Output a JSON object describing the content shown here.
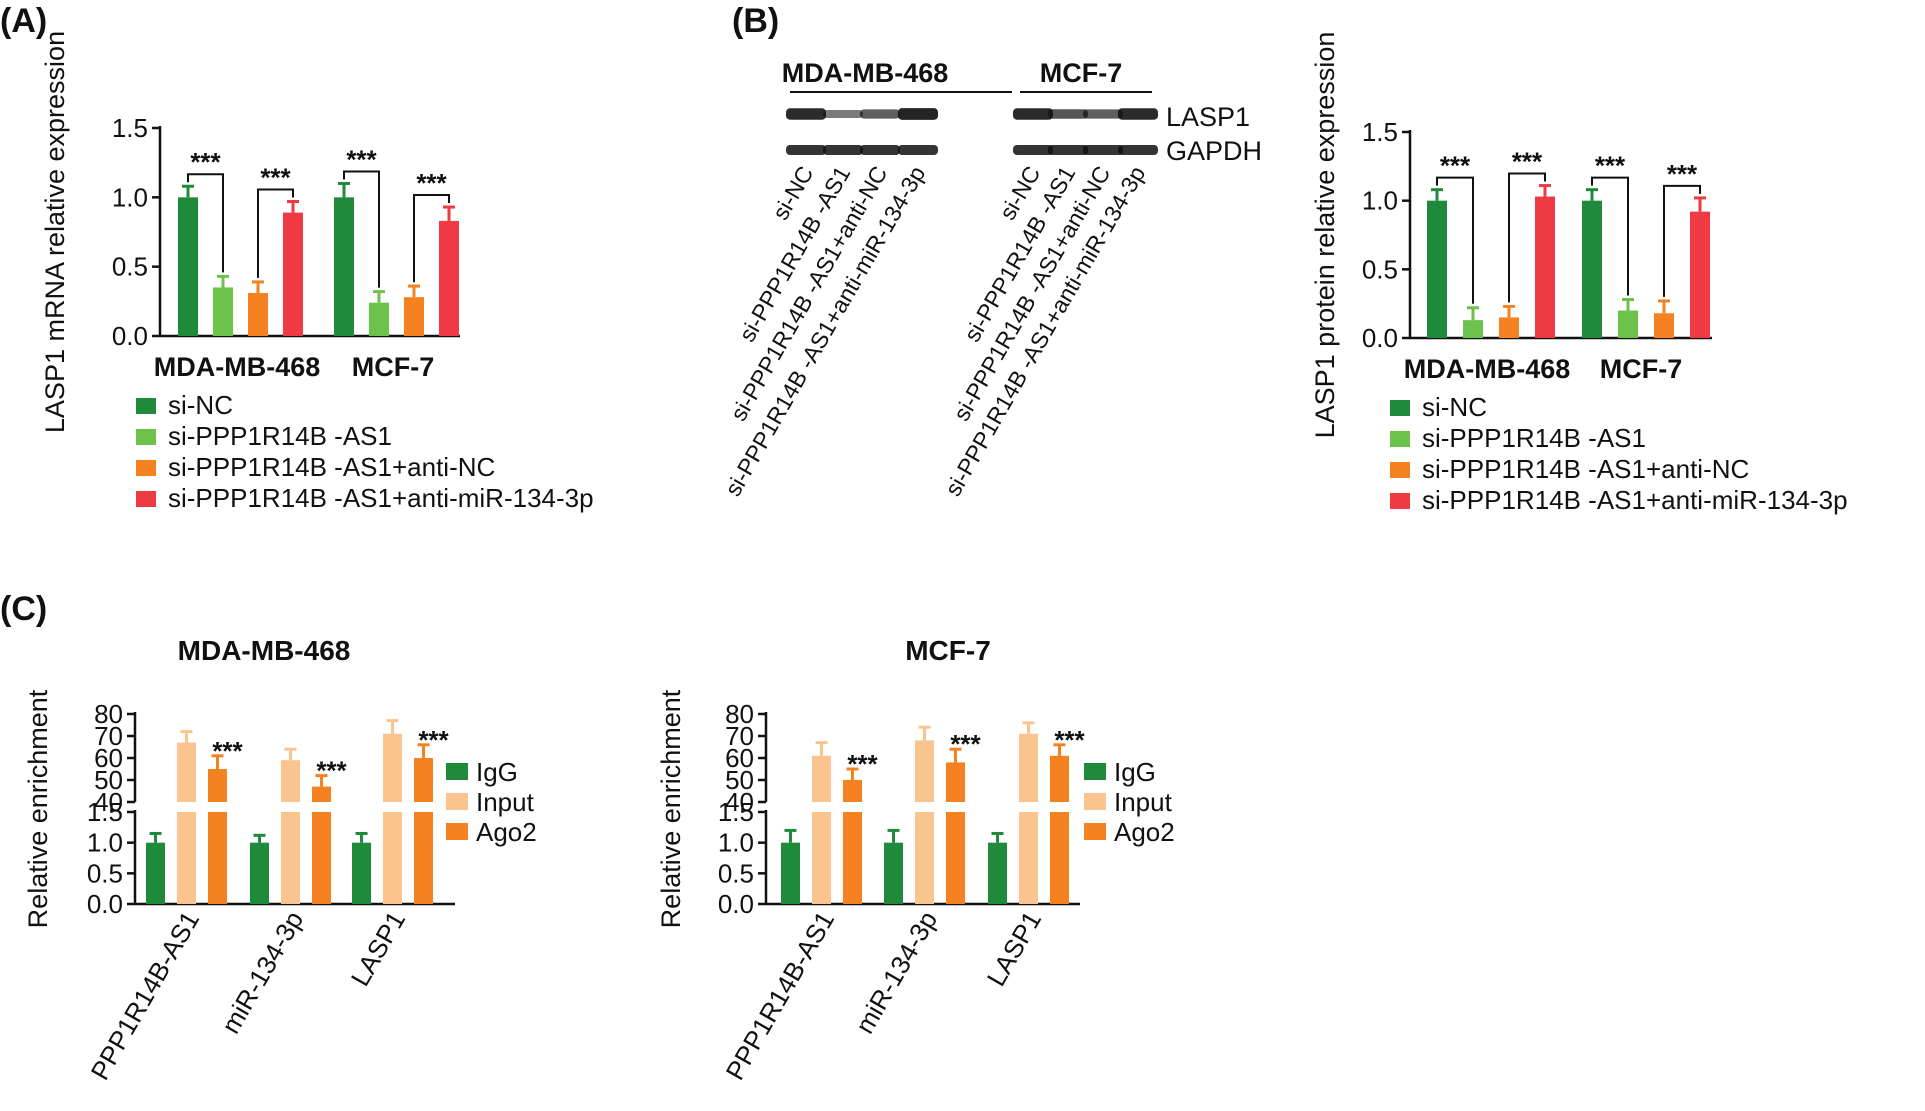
{
  "panels": {
    "a": "(A)",
    "b": "(B)",
    "c": "(C)"
  },
  "colors": {
    "si_nc": "#1f8a3c",
    "si_as1": "#6cc24a",
    "anti_nc": "#f58220",
    "anti_mir": "#ee3a43",
    "igg": "#1f8a3c",
    "input": "#f9c48e",
    "ago2": "#f58220",
    "axis": "#111111"
  },
  "legend_abc": {
    "items": [
      "si-NC",
      "si-PPP1R14B -AS1",
      "si-PPP1R14B -AS1+anti-NC",
      "si-PPP1R14B -AS1+anti-miR-134-3p"
    ]
  },
  "blot": {
    "groups": [
      "MDA-MB-468",
      "MCF-7"
    ],
    "bands": [
      "LASP1",
      "GAPDH"
    ],
    "lanes": [
      "si-NC",
      "si-PPP1R14B -AS1",
      "si-PPP1R14B -AS1+anti-NC",
      "si-PPP1R14B -AS1+anti-miR-134-3p",
      "si-NC",
      "si-PPP1R14B -AS1",
      "si-PPP1R14B -AS1+anti-NC",
      "si-PPP1R14B -AS1+anti-miR-134-3p"
    ]
  },
  "legend_c": {
    "items": [
      "IgG",
      "Input",
      "Ago2"
    ]
  },
  "chart_data": [
    {
      "id": "A",
      "type": "bar",
      "title": "",
      "xlabel": "",
      "ylabel": "LASP1 mRNA relative expression",
      "ylim": [
        0,
        1.5
      ],
      "yticks": [
        "0.0",
        "0.5",
        "1.0",
        "1.5"
      ],
      "categories": [
        "MDA-MB-468",
        "MCF-7"
      ],
      "series": [
        {
          "name": "si-NC",
          "values": [
            1.0,
            1.0
          ],
          "errors": [
            0.08,
            0.1
          ]
        },
        {
          "name": "si-PPP1R14B -AS1",
          "values": [
            0.35,
            0.24
          ],
          "errors": [
            0.08,
            0.08
          ]
        },
        {
          "name": "si-PPP1R14B -AS1+anti-NC",
          "values": [
            0.31,
            0.28
          ],
          "errors": [
            0.08,
            0.08
          ]
        },
        {
          "name": "si-PPP1R14B -AS1+anti-miR-134-3p",
          "values": [
            0.89,
            0.83
          ],
          "errors": [
            0.08,
            0.1
          ]
        }
      ],
      "annotations": [
        "***",
        "***",
        "***",
        "***"
      ]
    },
    {
      "id": "B",
      "type": "bar",
      "title": "",
      "xlabel": "",
      "ylabel": "LASP1 protein relative expression",
      "ylim": [
        0,
        1.5
      ],
      "yticks": [
        "0.0",
        "0.5",
        "1.0",
        "1.5"
      ],
      "categories": [
        "MDA-MB-468",
        "MCF-7"
      ],
      "series": [
        {
          "name": "si-NC",
          "values": [
            1.0,
            1.0
          ],
          "errors": [
            0.08,
            0.08
          ]
        },
        {
          "name": "si-PPP1R14B -AS1",
          "values": [
            0.13,
            0.2
          ],
          "errors": [
            0.09,
            0.08
          ]
        },
        {
          "name": "si-PPP1R14B -AS1+anti-NC",
          "values": [
            0.15,
            0.18
          ],
          "errors": [
            0.08,
            0.09
          ]
        },
        {
          "name": "si-PPP1R14B -AS1+anti-miR-134-3p",
          "values": [
            1.03,
            0.92
          ],
          "errors": [
            0.08,
            0.1
          ]
        }
      ],
      "annotations": [
        "***",
        "***",
        "***",
        "***"
      ]
    },
    {
      "id": "C1",
      "type": "bar",
      "title": "MDA-MB-468",
      "xlabel": "",
      "ylabel": "Relative enrichment",
      "broken_axis": true,
      "lower_ylim": [
        0,
        1.5
      ],
      "upper_ylim": [
        40,
        80
      ],
      "lower_yticks": [
        "0.0",
        "0.5",
        "1.0",
        "1.5"
      ],
      "upper_yticks": [
        "40",
        "50",
        "60",
        "70",
        "80"
      ],
      "categories": [
        "PPP1R14B-AS1",
        "miR-134-3p",
        "LASP1"
      ],
      "series": [
        {
          "name": "IgG",
          "values": [
            1.0,
            1.0,
            1.0
          ],
          "errors": [
            0.15,
            0.12,
            0.15
          ]
        },
        {
          "name": "Input",
          "values": [
            67,
            59,
            71
          ],
          "errors": [
            5,
            5,
            6
          ]
        },
        {
          "name": "Ago2",
          "values": [
            55,
            47,
            60
          ],
          "errors": [
            6,
            5,
            6
          ]
        }
      ],
      "annotations": [
        "***",
        "***",
        "***"
      ]
    },
    {
      "id": "C2",
      "type": "bar",
      "title": "MCF-7",
      "xlabel": "",
      "ylabel": "Relative enrichment",
      "broken_axis": true,
      "lower_ylim": [
        0,
        1.5
      ],
      "upper_ylim": [
        40,
        80
      ],
      "lower_yticks": [
        "0.0",
        "0.5",
        "1.0",
        "1.5"
      ],
      "upper_yticks": [
        "40",
        "50",
        "60",
        "70",
        "80"
      ],
      "categories": [
        "PPP1R14B-AS1",
        "miR-134-3p",
        "LASP1"
      ],
      "series": [
        {
          "name": "IgG",
          "values": [
            1.0,
            1.0,
            1.0
          ],
          "errors": [
            0.2,
            0.2,
            0.15
          ]
        },
        {
          "name": "Input",
          "values": [
            61,
            68,
            71
          ],
          "errors": [
            6,
            6,
            5
          ]
        },
        {
          "name": "Ago2",
          "values": [
            50,
            58,
            61
          ],
          "errors": [
            5,
            6,
            5
          ]
        }
      ],
      "annotations": [
        "***",
        "***",
        "***"
      ]
    }
  ]
}
